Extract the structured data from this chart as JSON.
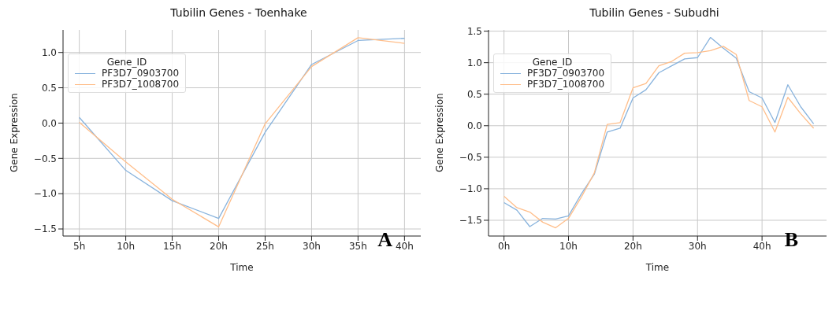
{
  "chart_data": [
    {
      "type": "line",
      "title": "Tubilin Genes - Toenhake",
      "xlabel": "Time",
      "ylabel": "Gene Expression",
      "legend_title": "Gene_ID",
      "legend": "top left",
      "grid": true,
      "marker": "none",
      "line_style": "solid",
      "x": [
        5,
        10,
        15,
        20,
        25,
        30,
        35,
        40
      ],
      "series": [
        {
          "name": "PF3D7_0903700",
          "color": "#88b3dd",
          "values": [
            0.08,
            -0.67,
            -1.1,
            -1.35,
            -0.13,
            0.83,
            1.17,
            1.2
          ]
        },
        {
          "name": "PF3D7_1008700",
          "color": "#ffbe8a",
          "values": [
            0.01,
            -0.55,
            -1.08,
            -1.47,
            -0.01,
            0.8,
            1.21,
            1.13
          ]
        }
      ],
      "xlim": [
        3.25,
        41.75
      ],
      "xticks": [
        {
          "value": 5,
          "label": "5h"
        },
        {
          "value": 10,
          "label": "10h"
        },
        {
          "value": 15,
          "label": "15h"
        },
        {
          "value": 20,
          "label": "20h"
        },
        {
          "value": 25,
          "label": "25h"
        },
        {
          "value": 30,
          "label": "30h"
        },
        {
          "value": 35,
          "label": "35h"
        },
        {
          "value": 40,
          "label": "40h"
        }
      ],
      "ylim": [
        -1.6,
        1.32
      ],
      "yticks": [
        {
          "value": -1.5,
          "label": "−1.5"
        },
        {
          "value": -1,
          "label": "−1.0"
        },
        {
          "value": -0.5,
          "label": "−0.5"
        },
        {
          "value": 0,
          "label": "0.0"
        },
        {
          "value": 0.5,
          "label": "0.5"
        },
        {
          "value": 1,
          "label": "1.0"
        }
      ],
      "annotations": [
        "A"
      ]
    },
    {
      "type": "line",
      "title": "Tubilin Genes - Subudhi",
      "xlabel": "Time",
      "ylabel": "Gene Expression",
      "legend_title": "Gene_ID",
      "legend": "top left",
      "grid": true,
      "marker": "none",
      "line_style": "solid",
      "x": [
        0,
        2,
        4,
        6,
        8,
        10,
        12,
        14,
        16,
        18,
        20,
        22,
        24,
        26,
        28,
        30,
        32,
        34,
        36,
        38,
        40,
        42,
        44,
        46,
        48
      ],
      "series": [
        {
          "name": "PF3D7_0903700",
          "color": "#88b3dd",
          "values": [
            -1.22,
            -1.34,
            -1.6,
            -1.47,
            -1.48,
            -1.43,
            -1.08,
            -0.77,
            -0.1,
            -0.04,
            0.44,
            0.57,
            0.84,
            0.95,
            1.06,
            1.08,
            1.4,
            1.23,
            1.07,
            0.54,
            0.44,
            0.05,
            0.65,
            0.3,
            0.03
          ]
        },
        {
          "name": "PF3D7_1008700",
          "color": "#ffbe8a",
          "values": [
            -1.12,
            -1.3,
            -1.37,
            -1.53,
            -1.62,
            -1.47,
            -1.13,
            -0.75,
            0.02,
            0.05,
            0.6,
            0.67,
            0.95,
            1.02,
            1.15,
            1.16,
            1.19,
            1.26,
            1.13,
            0.4,
            0.3,
            -0.1,
            0.45,
            0.19,
            -0.04
          ]
        }
      ],
      "xlim": [
        -2.4,
        50
      ],
      "xticks": [
        {
          "value": 0,
          "label": "0h"
        },
        {
          "value": 10,
          "label": "10h"
        },
        {
          "value": 20,
          "label": "20h"
        },
        {
          "value": 30,
          "label": "30h"
        },
        {
          "value": 40,
          "label": "40h"
        }
      ],
      "ylim": [
        -1.75,
        1.52
      ],
      "yticks": [
        {
          "value": -1.5,
          "label": "−1.5"
        },
        {
          "value": -1,
          "label": "−1.0"
        },
        {
          "value": -0.5,
          "label": "−0.5"
        },
        {
          "value": 0,
          "label": "0.0"
        },
        {
          "value": 0.5,
          "label": "0.5"
        },
        {
          "value": 1,
          "label": "1.0"
        },
        {
          "value": 1.5,
          "label": "1.5"
        }
      ],
      "annotations": [
        "B"
      ]
    }
  ]
}
